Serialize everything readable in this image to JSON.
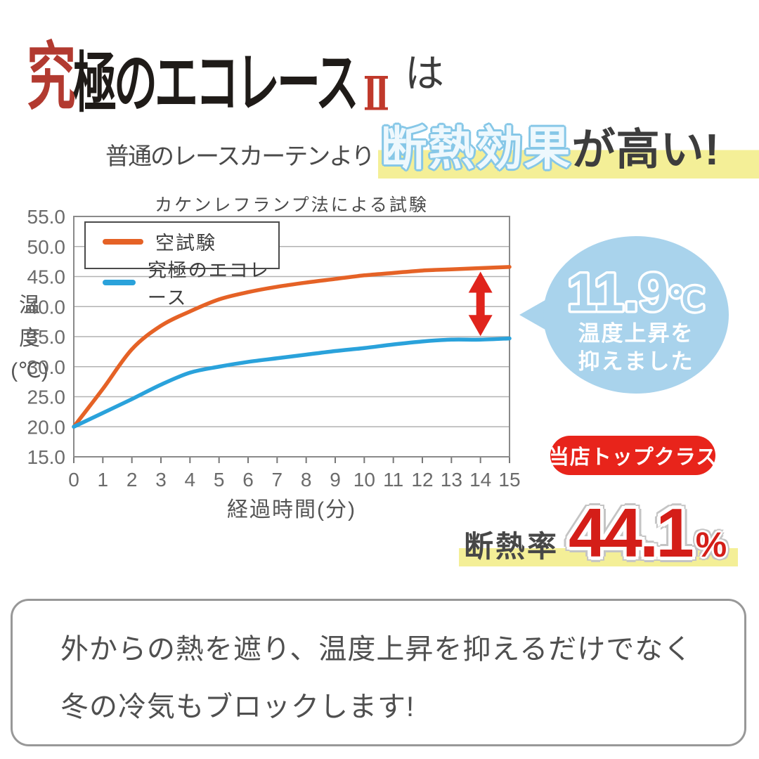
{
  "page": {
    "background": "#ffffff"
  },
  "header": {
    "logo": {
      "first": "究",
      "rest": "極のエコレース",
      "numeral": "Ⅱ",
      "suffix": "は",
      "accent_color": "#b23a30",
      "text_color": "#1f1b18"
    },
    "tagline": {
      "prefix": "普通のレースカーテンより",
      "highlight": "断熱効果",
      "rest": "が高い!",
      "highlight_outline_color": "#86c7e7",
      "highlight_fill_color": "#eef8fd",
      "band_color": "#f4ef97"
    }
  },
  "chart_data": {
    "type": "line",
    "title": "カケンレフランプ法による試験",
    "xlabel": "経過時間(分)",
    "ylabel": "温度(℃)",
    "ylabel_vertical": "温\n度\n(℃)",
    "xlim": [
      0,
      15
    ],
    "ylim": [
      15,
      55
    ],
    "grid": true,
    "legend_position": "top-left",
    "xticks": [
      0,
      1,
      2,
      3,
      4,
      5,
      6,
      7,
      8,
      9,
      10,
      11,
      12,
      13,
      14,
      15
    ],
    "yticks": [
      55,
      50,
      45,
      40,
      35,
      30,
      25,
      20,
      15
    ],
    "ytick_labels": [
      "55.0",
      "50.0",
      "45.0",
      "40.0",
      "35.0",
      "30.0",
      "25.0",
      "20.0",
      "15.0"
    ],
    "x": [
      0,
      1,
      2,
      3,
      4,
      5,
      6,
      7,
      8,
      9,
      10,
      11,
      12,
      13,
      14,
      15
    ],
    "series": [
      {
        "name": "空試験",
        "color": "#e56226",
        "values": [
          20.0,
          26.3,
          32.9,
          36.8,
          39.2,
          41.2,
          42.4,
          43.3,
          44.0,
          44.6,
          45.2,
          45.6,
          46.0,
          46.2,
          46.4,
          46.6
        ]
      },
      {
        "name": "究極のエコレース",
        "color": "#2aa2db",
        "values": [
          20.0,
          22.3,
          24.6,
          27.0,
          29.0,
          30.0,
          30.8,
          31.4,
          32.0,
          32.6,
          33.1,
          33.7,
          34.2,
          34.5,
          34.5,
          34.7
        ]
      }
    ],
    "annotation_arrow": {
      "x": 14,
      "color": "#e0241c"
    }
  },
  "bubble": {
    "value": "11.9",
    "unit": "℃",
    "line1": "温度上昇を",
    "line2": "抑えました",
    "bg_color": "#a9d3ec"
  },
  "badge": {
    "label": "当店トップクラス",
    "bg_color": "#e8241b"
  },
  "rate": {
    "label": "断熱率",
    "value": "44.1",
    "unit": "%",
    "value_color": "#d41e18",
    "band_color": "#f4ef97"
  },
  "footer": {
    "line1": "外からの熱を遮り、温度上昇を抑えるだけでなく",
    "line2": "冬の冷気もブロックします!"
  }
}
